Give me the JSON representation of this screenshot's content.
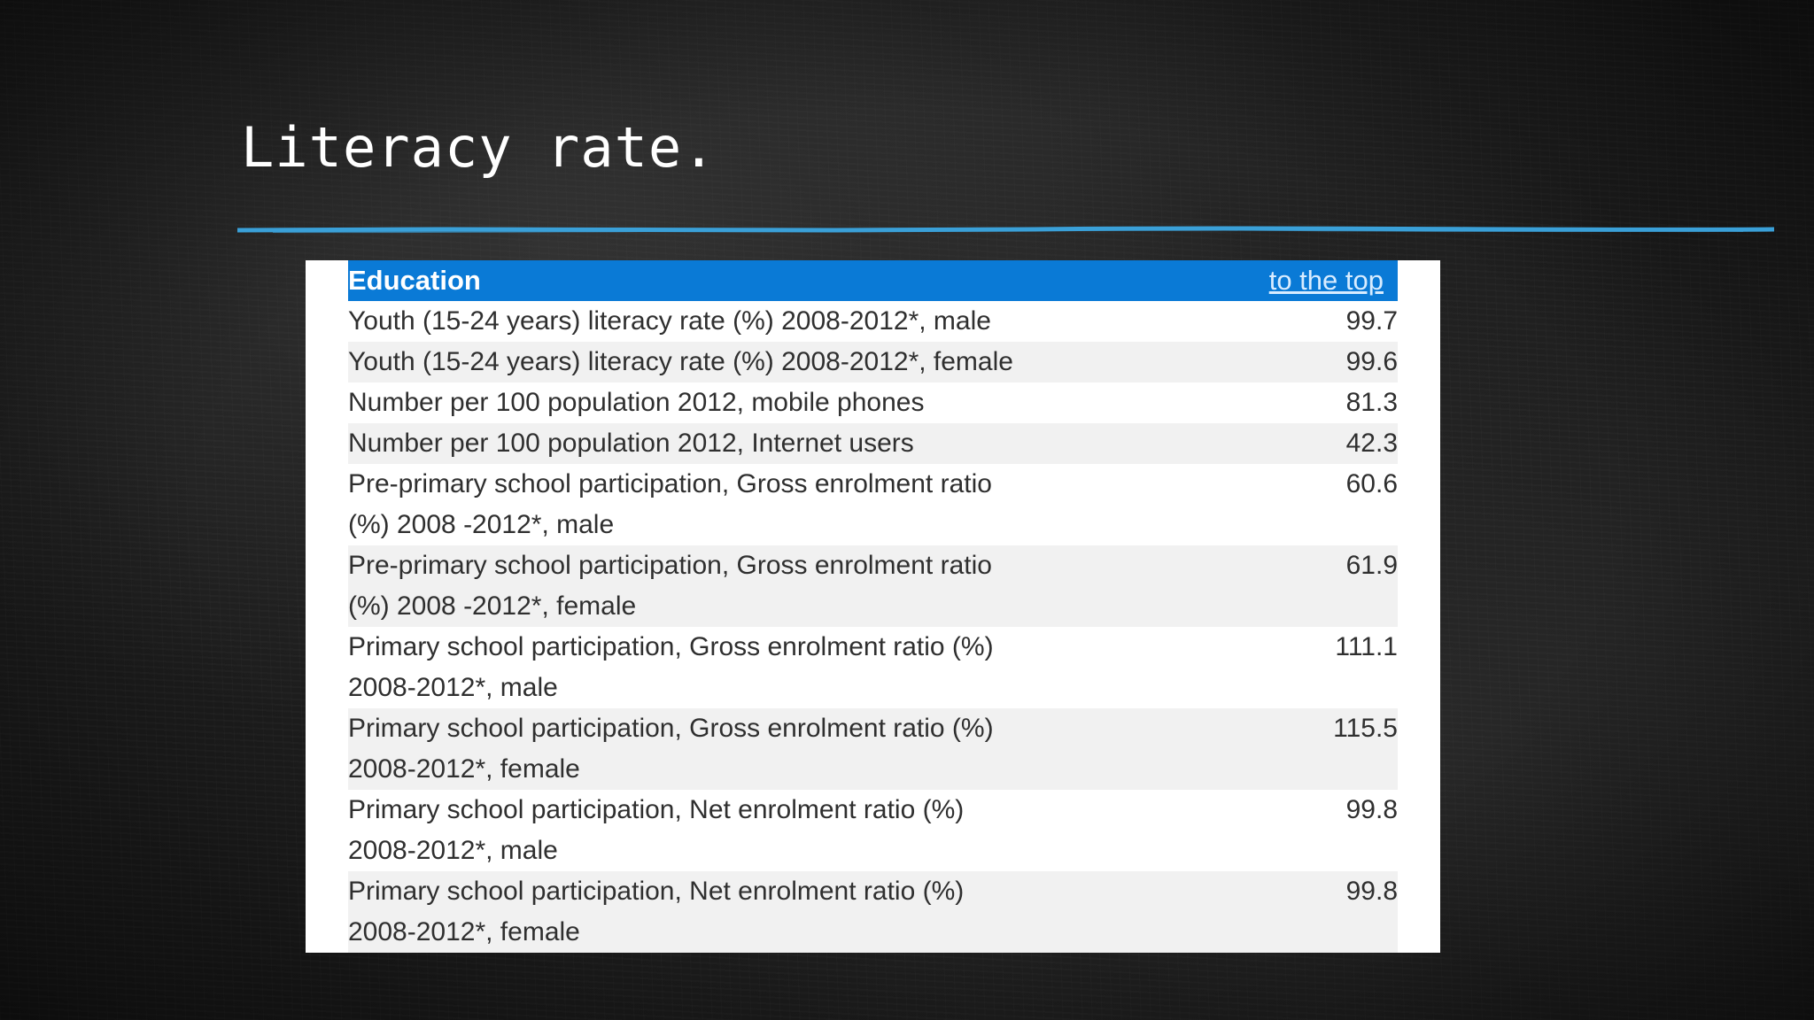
{
  "slide": {
    "title": "Literacy rate.",
    "accent_color": "#3aa0d8"
  },
  "table": {
    "header_color": "#0a7ad6",
    "header": {
      "section": "Education",
      "link": "to the top"
    },
    "rows": [
      {
        "label": "Youth (15-24 years) literacy rate (%) 2008-2012*, male",
        "value": "99.7"
      },
      {
        "label": "Youth (15-24 years) literacy rate (%) 2008-2012*, female",
        "value": "99.6"
      },
      {
        "label": "Number per 100 population 2012, mobile phones",
        "value": "81.3"
      },
      {
        "label": "Number per 100 population 2012, Internet users",
        "value": "42.3"
      },
      {
        "label": "Pre-primary school participation, Gross enrolment ratio",
        "label2": "(%) 2008 -2012*, male",
        "value": "60.6"
      },
      {
        "label": "Pre-primary school participation, Gross enrolment ratio",
        "label2": "(%) 2008 -2012*, female",
        "value": "61.9"
      },
      {
        "label": "Primary school participation, Gross enrolment ratio (%)",
        "label2": "2008-2012*, male",
        "value": "111.1"
      },
      {
        "label": "Primary school participation, Gross enrolment ratio (%)",
        "label2": "2008-2012*, female",
        "value": "115.5"
      },
      {
        "label": "Primary school participation, Net enrolment ratio (%)",
        "label2": "2008-2012*, male",
        "value": "99.8"
      },
      {
        "label": "Primary school participation, Net enrolment ratio (%)",
        "label2": "2008-2012*, female",
        "value": "99.8"
      }
    ]
  }
}
